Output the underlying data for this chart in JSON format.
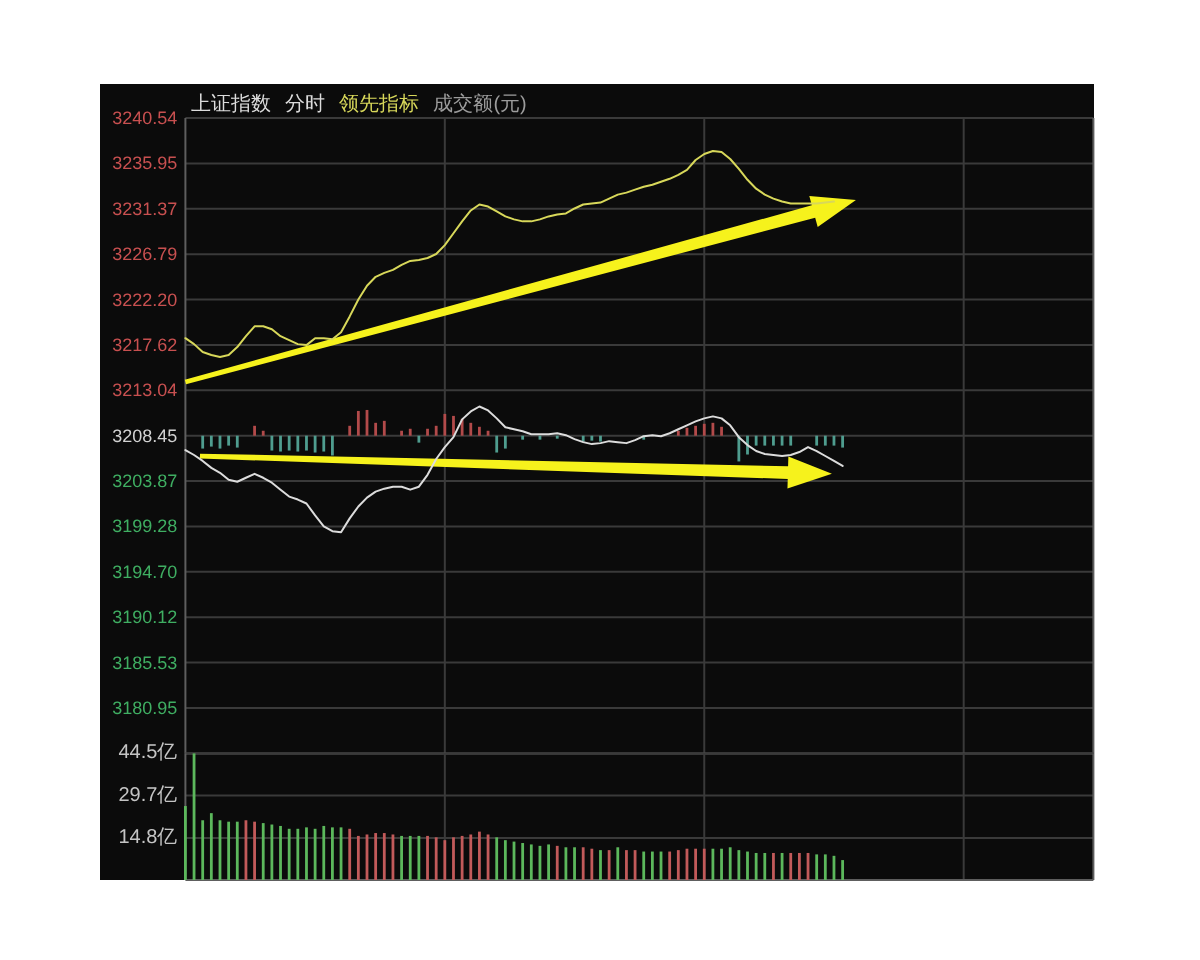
{
  "chart_data": [
    {
      "type": "line",
      "title": "上证指数",
      "subtitle": "分时",
      "annotations": [
        "成交额(元)"
      ],
      "categories": [
        null,
        null,
        null,
        null,
        null,
        null,
        null,
        null,
        null,
        null,
        null,
        null,
        null,
        null,
        null,
        null,
        null,
        null,
        null,
        null,
        null,
        null,
        null,
        null,
        null,
        null,
        null,
        null,
        null,
        null,
        null,
        null,
        null,
        null,
        null,
        null,
        null,
        null,
        null,
        null,
        null,
        null,
        null,
        null,
        null,
        null,
        null,
        null,
        null,
        null,
        null,
        null,
        null,
        null,
        null,
        null,
        null,
        null,
        null,
        null,
        null,
        null,
        null,
        null,
        null,
        null,
        null,
        null,
        null,
        null,
        null,
        null,
        null,
        null,
        null,
        null,
        null,
        null,
        null,
        null,
        null,
        null,
        null,
        null,
        null,
        null,
        null,
        null,
        null,
        null,
        null,
        null,
        null,
        null,
        null,
        null,
        null,
        null,
        null,
        null,
        null,
        null,
        null,
        null,
        null,
        null
      ],
      "series": [
        {
          "type": "bar",
          "colors": [
            null,
            null,
            "#4f9d8f",
            "#4f9d8f",
            "#4f9d8f",
            "#4f9d8f",
            "#4f9d8f",
            null,
            "#b24a4a",
            "#b24a4a",
            "#4f9d8f",
            "#4f9d8f",
            "#4f9d8f",
            "#4f9d8f",
            "#4f9d8f",
            "#4f9d8f",
            "#4f9d8f",
            "#4f9d8f",
            null,
            "#b24a4a",
            "#b24a4a",
            "#b24a4a",
            "#b24a4a",
            "#b24a4a",
            null,
            "#b24a4a",
            "#b24a4a",
            "#4f9d8f",
            "#b24a4a",
            "#b24a4a",
            "#b24a4a",
            "#b24a4a",
            "#b24a4a",
            "#b24a4a",
            "#b24a4a",
            "#b24a4a",
            "#4f9d8f",
            "#4f9d8f",
            null,
            "#4f9d8f",
            null,
            "#4f9d8f",
            null,
            "#4f9d8f",
            null,
            null,
            "#4f9d8f",
            "#4f9d8f",
            "#4f9d8f",
            null,
            null,
            null,
            null,
            "#4f9d8f",
            null,
            null,
            null,
            "#b24a4a",
            "#b24a4a",
            "#b24a4a",
            "#b24a4a",
            "#b24a4a",
            "#b24a4a",
            null,
            "#4f9d8f",
            "#4f9d8f",
            "#4f9d8f",
            "#4f9d8f",
            "#4f9d8f",
            "#4f9d8f",
            "#4f9d8f",
            null,
            null,
            "#4f9d8f",
            "#4f9d8f",
            "#4f9d8f",
            "#4f9d8f",
            null,
            null,
            null,
            null,
            null,
            null,
            null,
            null,
            null,
            null,
            null,
            null,
            null,
            null,
            null,
            null,
            null,
            null,
            null,
            null,
            null,
            null,
            null,
            null,
            null,
            null,
            null,
            null,
            null
          ],
          "base": [
            null,
            null,
            3208.45,
            3208.45,
            3208.45,
            3208.45,
            3208.45,
            null,
            3208.45,
            3208.45,
            3208.45,
            3208.45,
            3208.45,
            3208.45,
            3208.45,
            3208.45,
            3208.45,
            3208.45,
            null,
            3208.45,
            3208.45,
            3208.45,
            3208.45,
            3208.45,
            null,
            3208.45,
            3208.45,
            3208.45,
            3208.45,
            3208.45,
            3208.45,
            3208.45,
            3208.45,
            3208.45,
            3208.45,
            3208.45,
            3208.45,
            3208.45,
            null,
            3208.45,
            null,
            3208.45,
            null,
            3208.45,
            null,
            null,
            3208.45,
            3208.45,
            3208.45,
            null,
            null,
            null,
            null,
            3208.45,
            null,
            null,
            null,
            3208.45,
            3208.45,
            3208.45,
            3208.45,
            3208.45,
            3208.45,
            null,
            3208.45,
            3208.45,
            3208.45,
            3208.45,
            3208.45,
            3208.45,
            3208.45,
            null,
            null,
            3208.45,
            3208.45,
            3208.45,
            3208.45,
            null,
            null,
            null,
            null,
            null,
            null,
            null,
            null,
            null,
            null,
            null,
            null,
            null,
            null,
            null,
            null,
            null,
            null,
            null,
            null,
            null,
            null,
            null,
            null,
            null,
            null,
            null,
            null,
            null
          ],
          "values": [
            null,
            null,
            -1.3,
            -1.1,
            -1.3,
            -1.0,
            -1.2,
            null,
            1.0,
            0.5,
            -1.5,
            -1.6,
            -1.5,
            -1.6,
            -1.5,
            -1.7,
            -1.6,
            -2.0,
            null,
            1.0,
            2.5,
            2.6,
            1.3,
            1.5,
            null,
            0.5,
            0.7,
            -0.7,
            0.7,
            1.0,
            2.2,
            2.0,
            1.7,
            1.3,
            0.9,
            0.5,
            -1.7,
            -1.3,
            null,
            -0.4,
            null,
            -0.4,
            null,
            -0.3,
            null,
            null,
            -0.6,
            -0.5,
            -0.6,
            null,
            null,
            null,
            null,
            -0.4,
            null,
            null,
            null,
            0.5,
            0.8,
            1.0,
            1.2,
            1.3,
            0.9,
            null,
            -2.6,
            -1.9,
            -1.0,
            -1.0,
            -1.0,
            -1.0,
            -1.0,
            null,
            null,
            -1.0,
            -1.0,
            -1.0,
            -1.2,
            null,
            null,
            null,
            null,
            null,
            null,
            null,
            null,
            null,
            null,
            null,
            null,
            null,
            null,
            null,
            null,
            null,
            null,
            null,
            null,
            null,
            null,
            null,
            null,
            null,
            null,
            null,
            null,
            null
          ]
        },
        {
          "color": "#dcdcdc",
          "values": [
            3207.0,
            3206.5,
            3205.9,
            3205.2,
            3204.7,
            3204.0,
            3203.8,
            3204.2,
            3204.6,
            3204.2,
            3203.7,
            3203.0,
            3202.3,
            3202.0,
            3201.6,
            3200.4,
            3199.3,
            3198.8,
            3198.7,
            3200.1,
            3201.3,
            3202.2,
            3202.8,
            3203.1,
            3203.3,
            3203.3,
            3203.0,
            3203.3,
            3204.5,
            3206.1,
            3207.3,
            3208.3,
            3210.1,
            3210.9,
            3211.4,
            3211.0,
            3210.2,
            3209.3,
            3209.1,
            3208.9,
            3208.6,
            3208.6,
            3208.6,
            3208.7,
            3208.5,
            3208.1,
            3207.8,
            3207.6,
            3207.7,
            3207.9,
            3207.8,
            3207.7,
            3208.0,
            3208.4,
            3208.5,
            3208.4,
            3208.7,
            3209.1,
            3209.5,
            3209.9,
            3210.2,
            3210.4,
            3210.2,
            3209.5,
            3208.3,
            3207.5,
            3206.9,
            3206.6,
            3206.5,
            3206.4,
            3206.5,
            3206.8,
            3207.3,
            3206.9,
            3206.4,
            3205.9,
            3205.4,
            null,
            null,
            null,
            null,
            null,
            null,
            null,
            null,
            null,
            null,
            null,
            null,
            null,
            null,
            null,
            null,
            null,
            null,
            null,
            null,
            null,
            null,
            null,
            null,
            null,
            null,
            null,
            null,
            null
          ]
        },
        {
          "name": "领先指标",
          "color": "#d8d85a",
          "values": [
            3218.3,
            3217.7,
            3216.9,
            3216.6,
            3216.4,
            3216.6,
            3217.4,
            3218.5,
            3219.5,
            3219.5,
            3219.2,
            3218.5,
            3218.1,
            3217.7,
            3217.6,
            3218.3,
            3218.3,
            3218.2,
            3218.9,
            3220.5,
            3222.2,
            3223.6,
            3224.5,
            3224.9,
            3225.2,
            3225.7,
            3226.1,
            3226.2,
            3226.4,
            3226.8,
            3227.7,
            3228.9,
            3230.1,
            3231.2,
            3231.8,
            3231.6,
            3231.1,
            3230.6,
            3230.3,
            3230.1,
            3230.1,
            3230.3,
            3230.6,
            3230.8,
            3230.9,
            3231.4,
            3231.8,
            3231.9,
            3232.0,
            3232.4,
            3232.8,
            3233.0,
            3233.3,
            3233.6,
            3233.8,
            3234.1,
            3234.4,
            3234.8,
            3235.3,
            3236.3,
            3236.9,
            3237.2,
            3237.1,
            3236.4,
            3235.4,
            3234.3,
            3233.4,
            3232.8,
            3232.4,
            3232.1,
            3231.9,
            3231.9,
            3231.9,
            3231.9,
            3232.0,
            3232.1,
            null,
            null,
            null,
            null,
            null,
            null,
            null,
            null,
            null,
            null,
            null,
            null,
            null,
            null,
            null,
            null,
            null,
            null,
            null,
            null,
            null,
            null,
            null,
            null,
            null,
            null,
            null,
            null,
            null,
            null
          ]
        }
      ],
      "ylim": [
        3176.36,
        3240.54
      ],
      "yticks": [
        3180.95,
        3185.53,
        3190.12,
        {
          "value": 3194.7,
          "label": "3194.70"
        },
        3199.28,
        3203.87,
        3208.45,
        3213.04,
        3217.62,
        {
          "value": 3222.2,
          "label": "3222.20"
        },
        3226.79,
        3231.37,
        3235.95,
        3240.54
      ],
      "grid": true,
      "legend": "top left",
      "tick_labels": "y"
    },
    {
      "type": "bar",
      "categories": [
        null,
        null,
        null,
        null,
        null,
        null,
        null,
        null,
        null,
        null,
        null,
        null,
        null,
        null,
        null,
        null,
        null,
        null,
        null,
        null,
        null,
        null,
        null,
        null,
        null,
        null,
        null,
        null,
        null,
        null,
        null,
        null,
        null,
        null,
        null,
        null,
        null,
        null,
        null,
        null,
        null,
        null,
        null,
        null,
        null,
        null,
        null,
        null,
        null,
        null,
        null,
        null,
        null,
        null,
        null,
        null,
        null,
        null,
        null,
        null,
        null,
        null,
        null,
        null,
        null,
        null,
        null,
        null,
        null,
        null,
        null,
        null,
        null,
        null,
        null,
        null,
        null,
        null,
        null,
        null,
        null,
        null,
        null,
        null,
        null,
        null,
        null,
        null,
        null,
        null,
        null,
        null,
        null,
        null,
        null,
        null,
        null,
        null,
        null,
        null,
        null,
        null,
        null,
        null,
        null,
        null
      ],
      "values": [
        26,
        44.5,
        21,
        23.5,
        21,
        20.5,
        20.5,
        21,
        20.5,
        20,
        19.5,
        19,
        18,
        18,
        18.5,
        18,
        19,
        18.5,
        18.5,
        18,
        15.5,
        16,
        16.5,
        16.5,
        16,
        15.5,
        15.5,
        15.5,
        15.5,
        15,
        14,
        15,
        15.5,
        16,
        17,
        16,
        15,
        14,
        13.5,
        13,
        12.5,
        12,
        12.5,
        12,
        11.5,
        11.5,
        11.5,
        11,
        10.5,
        10.5,
        11.5,
        10.5,
        10.5,
        10,
        10,
        10,
        10,
        10.5,
        11,
        11,
        11,
        11,
        11,
        11.5,
        10.5,
        10,
        9.5,
        9.5,
        9.5,
        9.5,
        9.5,
        9.5,
        9.5,
        9,
        9,
        8.5,
        7,
        null,
        null,
        null,
        null,
        null,
        null,
        null,
        null,
        null,
        null,
        null,
        null,
        null,
        null,
        null,
        null,
        null,
        null,
        null,
        null,
        null,
        null,
        null,
        null,
        null,
        null,
        null,
        null,
        null
      ],
      "colors": [
        "#5cb85c",
        "#5cb85c",
        "#5cb85c",
        "#5cb85c",
        "#5cb85c",
        "#5cb85c",
        "#5cb85c",
        "#c25a5a",
        "#c25a5a",
        "#5cb85c",
        "#5cb85c",
        "#5cb85c",
        "#5cb85c",
        "#5cb85c",
        "#5cb85c",
        "#5cb85c",
        "#5cb85c",
        "#5cb85c",
        "#5cb85c",
        "#c25a5a",
        "#c25a5a",
        "#c25a5a",
        "#c25a5a",
        "#c25a5a",
        "#c25a5a",
        "#5cb85c",
        "#5cb85c",
        "#5cb85c",
        "#c25a5a",
        "#c25a5a",
        "#c25a5a",
        "#c25a5a",
        "#c25a5a",
        "#c25a5a",
        "#c25a5a",
        "#c25a5a",
        "#5cb85c",
        "#5cb85c",
        "#5cb85c",
        "#5cb85c",
        "#5cb85c",
        "#5cb85c",
        "#5cb85c",
        "#c25a5a",
        "#5cb85c",
        "#5cb85c",
        "#c25a5a",
        "#c25a5a",
        "#5cb85c",
        "#c25a5a",
        "#5cb85c",
        "#c25a5a",
        "#c25a5a",
        "#5cb85c",
        "#5cb85c",
        "#5cb85c",
        "#c25a5a",
        "#c25a5a",
        "#c25a5a",
        "#c25a5a",
        "#c25a5a",
        "#5cb85c",
        "#5cb85c",
        "#5cb85c",
        "#5cb85c",
        "#5cb85c",
        "#5cb85c",
        "#5cb85c",
        "#c25a5a",
        "#5cb85c",
        "#c25a5a",
        "#c25a5a",
        "#c25a5a",
        "#5cb85c",
        "#5cb85c",
        "#5cb85c",
        "#5cb85c",
        null,
        null,
        null,
        null,
        null,
        null,
        null,
        null,
        null,
        null,
        null,
        null,
        null,
        null,
        null,
        null,
        null,
        null,
        null,
        null,
        null,
        null,
        null,
        null,
        null,
        null,
        null,
        null,
        null
      ],
      "ylim": [
        0,
        44.5
      ],
      "yticks": [
        {
          "value": 14.8,
          "label": "14.8亿"
        },
        {
          "value": 29.7,
          "label": "29.7亿"
        },
        {
          "value": 44.5,
          "label": "44.5亿"
        }
      ],
      "grid": true,
      "tick_labels": "y"
    }
  ]
}
